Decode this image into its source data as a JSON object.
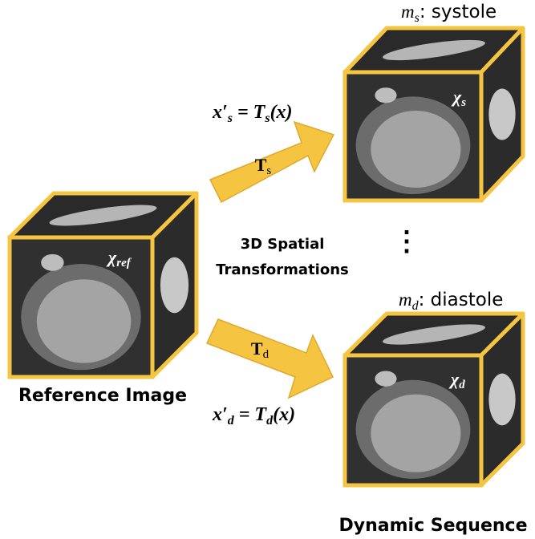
{
  "reference_label": "Reference Image",
  "sequence_label": "Dynamic Sequence",
  "transform_label": [
    "3D Spatial",
    "Transformations"
  ],
  "reference_symbol": {
    "base": "χ",
    "sub": "ref"
  },
  "frames": [
    {
      "name": {
        "var": "m",
        "sub": "s",
        "text": ": systole"
      },
      "symbol": {
        "base": "χ",
        "sub": "s"
      },
      "operator": {
        "base": "T",
        "sub": "s"
      },
      "equation": {
        "lhs": "x′",
        "lhs_sub": "s",
        "mid": " = T",
        "rhs_sub": "s",
        "arg": "(x)"
      }
    },
    {
      "name": {
        "var": "m",
        "sub": "d",
        "text": ": diastole"
      },
      "symbol": {
        "base": "χ",
        "sub": "d"
      },
      "operator": {
        "base": "T",
        "sub": "d"
      },
      "equation": {
        "lhs": "x′",
        "lhs_sub": "d",
        "mid": " = T",
        "rhs_sub": "d",
        "arg": "(x)"
      }
    }
  ],
  "ellipsis": "⋮"
}
